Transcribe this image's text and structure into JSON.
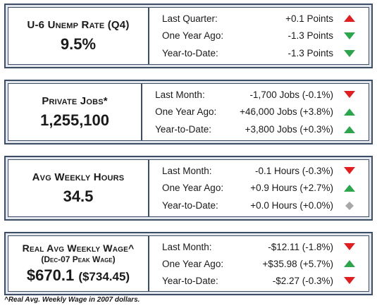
{
  "colors": {
    "up": "#2ea44f",
    "down": "#e02020",
    "up_red": "#e02020",
    "down_green": "#2ea44f",
    "flat": "#a8a8a8",
    "border": "#3b4e66"
  },
  "panels": [
    {
      "title": "U-6 Unemp Rate (Q4)",
      "subtitle": "",
      "value": "9.5%",
      "value_sub": "",
      "rows": [
        {
          "label": "Last Quarter:",
          "change": "+0.1 Points",
          "indicator": "up-red-icon"
        },
        {
          "label": "One Year Ago:",
          "change": "-1.3 Points",
          "indicator": "down-green-icon"
        },
        {
          "label": "Year-to-Date:",
          "change": "-1.3 Points",
          "indicator": "down-green-icon"
        }
      ]
    },
    {
      "title": "Private Jobs*",
      "subtitle": "",
      "value": "1,255,100",
      "value_sub": "",
      "rows": [
        {
          "label": "Last Month:",
          "change": "-1,700 Jobs (-0.1%)",
          "indicator": "down-red-icon"
        },
        {
          "label": "One Year Ago:",
          "change": "+46,000 Jobs (+3.8%)",
          "indicator": "up-green-icon"
        },
        {
          "label": "Year-to-Date:",
          "change": "+3,800 Jobs (+0.3%)",
          "indicator": "up-green-icon"
        }
      ]
    },
    {
      "title": "Avg Weekly Hours",
      "subtitle": "",
      "value": "34.5",
      "value_sub": "",
      "rows": [
        {
          "label": "Last Month:",
          "change": "-0.1 Hours (-0.3%)",
          "indicator": "down-red-icon"
        },
        {
          "label": "One Year Ago:",
          "change": "+0.9 Hours (+2.7%)",
          "indicator": "up-green-icon"
        },
        {
          "label": "Year-to-Date:",
          "change": "+0.0 Hours (+0.0%)",
          "indicator": "diamond-gray-icon"
        }
      ]
    },
    {
      "title": "Real Avg Weekly Wage^",
      "subtitle": "(Dec-07 Peak Wage)",
      "value": "$670.1",
      "value_sub": "($734.45)",
      "rows": [
        {
          "label": "Last Month:",
          "change": "-$12.11 (-1.8%)",
          "indicator": "down-red-icon"
        },
        {
          "label": "One Year Ago:",
          "change": "+$35.98 (+5.7%)",
          "indicator": "up-green-icon"
        },
        {
          "label": "Year-to-Date:",
          "change": "-$2.27 (-0.3%)",
          "indicator": "down-red-icon"
        }
      ]
    }
  ],
  "footnote": "^Real Avg. Weekly Wage in 2007 dollars."
}
